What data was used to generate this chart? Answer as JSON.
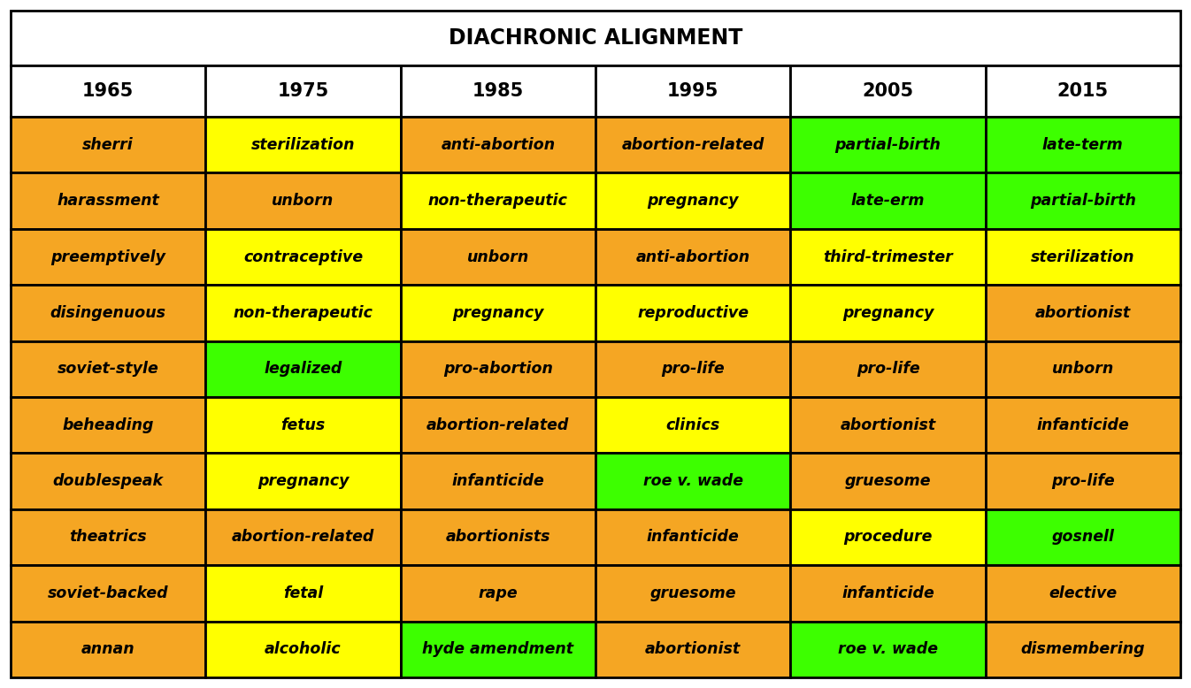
{
  "title": "DIACHRONIC ALIGNMENT",
  "headers": [
    "1965",
    "1975",
    "1985",
    "1995",
    "2005",
    "2015"
  ],
  "rows": [
    [
      "sherri",
      "sterilization",
      "anti-abortion",
      "abortion-related",
      "partial-birth",
      "late-term"
    ],
    [
      "harassment",
      "unborn",
      "non-therapeutic",
      "pregnancy",
      "late-erm",
      "partial-birth"
    ],
    [
      "preemptively",
      "contraceptive",
      "unborn",
      "anti-abortion",
      "third-trimester",
      "sterilization"
    ],
    [
      "disingenuous",
      "non-therapeutic",
      "pregnancy",
      "reproductive",
      "pregnancy",
      "abortionist"
    ],
    [
      "soviet-style",
      "legalized",
      "pro-abortion",
      "pro-life",
      "pro-life",
      "unborn"
    ],
    [
      "beheading",
      "fetus",
      "abortion-related",
      "clinics",
      "abortionist",
      "infanticide"
    ],
    [
      "doublespeak",
      "pregnancy",
      "infanticide",
      "roe v. wade",
      "gruesome",
      "pro-life"
    ],
    [
      "theatrics",
      "abortion-related",
      "abortionists",
      "infanticide",
      "procedure",
      "gosnell"
    ],
    [
      "soviet-backed",
      "fetal",
      "rape",
      "gruesome",
      "infanticide",
      "elective"
    ],
    [
      "annan",
      "alcoholic",
      "hyde amendment",
      "abortionist",
      "roe v. wade",
      "dismembering"
    ]
  ],
  "colors": [
    [
      "#F5A623",
      "#FFFF00",
      "#F5A623",
      "#F5A623",
      "#3DFF00",
      "#3DFF00"
    ],
    [
      "#F5A623",
      "#F5A623",
      "#FFFF00",
      "#FFFF00",
      "#3DFF00",
      "#3DFF00"
    ],
    [
      "#F5A623",
      "#FFFF00",
      "#F5A623",
      "#F5A623",
      "#FFFF00",
      "#FFFF00"
    ],
    [
      "#F5A623",
      "#FFFF00",
      "#FFFF00",
      "#FFFF00",
      "#FFFF00",
      "#F5A623"
    ],
    [
      "#F5A623",
      "#3DFF00",
      "#F5A623",
      "#F5A623",
      "#F5A623",
      "#F5A623"
    ],
    [
      "#F5A623",
      "#FFFF00",
      "#F5A623",
      "#FFFF00",
      "#F5A623",
      "#F5A623"
    ],
    [
      "#F5A623",
      "#FFFF00",
      "#F5A623",
      "#3DFF00",
      "#F5A623",
      "#F5A623"
    ],
    [
      "#F5A623",
      "#F5A623",
      "#F5A623",
      "#F5A623",
      "#FFFF00",
      "#3DFF00"
    ],
    [
      "#F5A623",
      "#FFFF00",
      "#F5A623",
      "#F5A623",
      "#F5A623",
      "#F5A623"
    ],
    [
      "#F5A623",
      "#FFFF00",
      "#3DFF00",
      "#F5A623",
      "#3DFF00",
      "#F5A623"
    ]
  ],
  "header_bg": "#FFFFFF",
  "title_bg": "#FFFFFF",
  "border_color": "#000000",
  "text_color": "#000000",
  "title_fontsize": 17,
  "header_fontsize": 15,
  "cell_fontsize": 12.5
}
